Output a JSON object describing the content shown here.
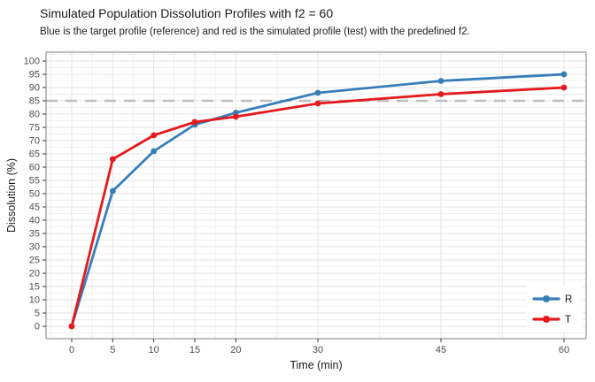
{
  "chart_data": {
    "type": "line",
    "title": "Simulated Population Dissolution Profiles with f2 = 60",
    "subtitle": "Blue is the target profile (reference) and red is the simulated profile (test) with the predefined f2.",
    "xlabel": "Time (min)",
    "ylabel": "Dissolution (%)",
    "x": [
      0,
      5,
      10,
      15,
      20,
      30,
      45,
      60
    ],
    "x_tick_labels": [
      "0",
      "5",
      "10",
      "15",
      "20",
      "30",
      "45",
      "60"
    ],
    "y_ticks": [
      0,
      5,
      10,
      15,
      20,
      25,
      30,
      35,
      40,
      45,
      50,
      55,
      60,
      65,
      70,
      75,
      80,
      85,
      90,
      95,
      100
    ],
    "ylim": [
      0,
      100
    ],
    "grid": true,
    "series": [
      {
        "name": "R",
        "color": "#377eb8",
        "values": [
          0,
          51,
          66,
          76,
          80.5,
          88,
          92.5,
          95
        ]
      },
      {
        "name": "T",
        "color": "#e41a1c",
        "values": [
          0,
          63,
          72,
          77,
          79,
          84,
          87.5,
          90
        ]
      }
    ],
    "reference_line": {
      "y": 85,
      "color": "#bdbdbd",
      "style": "dashed"
    },
    "legend": {
      "position": "bottom-right",
      "entries": [
        "R",
        "T"
      ]
    },
    "colors": {
      "grid_major": "#e3e3e3",
      "grid_minor": "#f0f0f0",
      "panel_border": "#7f7f7f",
      "tick_mark": "#333333",
      "tick_text": "#4d4d4d",
      "axis_title_text": "#1a1a1a"
    }
  }
}
